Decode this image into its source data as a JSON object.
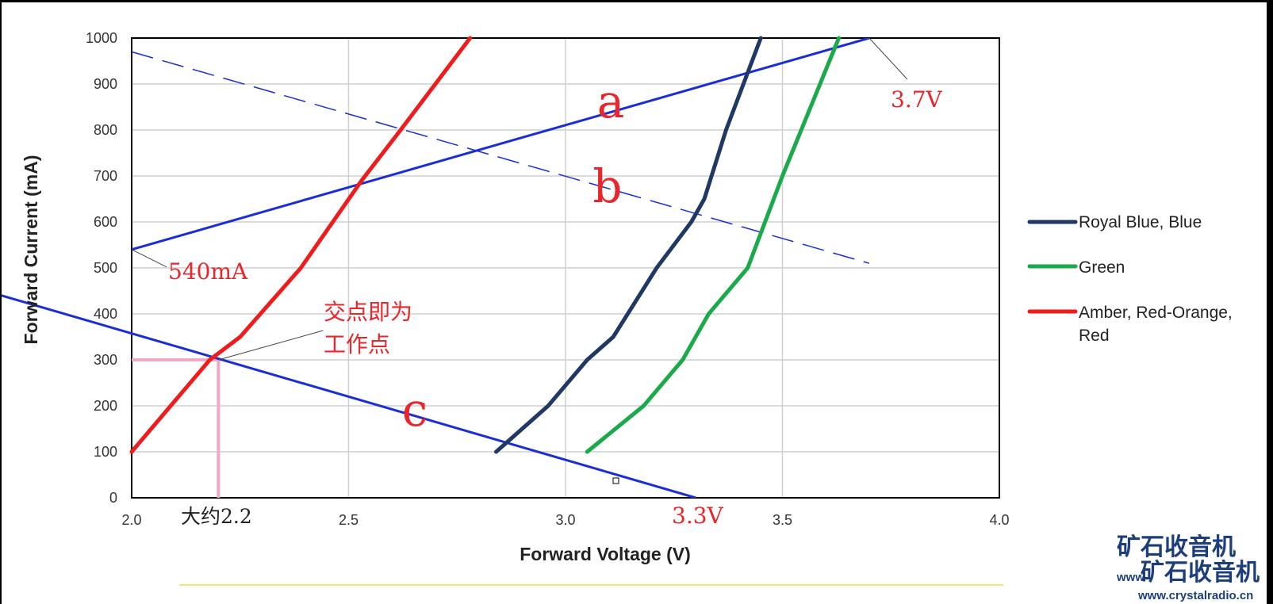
{
  "chart_data": {
    "type": "line",
    "xlabel": "Forward Voltage (V)",
    "ylabel": "Forward Current (mA)",
    "xlim": [
      2.0,
      4.0
    ],
    "ylim": [
      0,
      1000
    ],
    "x_ticks": [
      "2.0",
      "2.5",
      "3.0",
      "3.5",
      "4.0"
    ],
    "y_ticks": [
      "0",
      "100",
      "200",
      "300",
      "400",
      "500",
      "600",
      "700",
      "800",
      "900",
      "1000"
    ],
    "grid": true,
    "legend_position": "right",
    "series": [
      {
        "name": "Royal Blue, Blue",
        "color": "#1f3864",
        "points": [
          [
            2.84,
            100
          ],
          [
            2.96,
            200
          ],
          [
            3.05,
            300
          ],
          [
            3.11,
            350
          ],
          [
            3.21,
            500
          ],
          [
            3.29,
            600
          ],
          [
            3.32,
            650
          ],
          [
            3.37,
            800
          ],
          [
            3.41,
            900
          ],
          [
            3.45,
            1000
          ]
        ]
      },
      {
        "name": "Green",
        "color": "#1aaa4a",
        "points": [
          [
            3.05,
            100
          ],
          [
            3.18,
            200
          ],
          [
            3.27,
            300
          ],
          [
            3.33,
            400
          ],
          [
            3.42,
            500
          ],
          [
            3.5,
            700
          ],
          [
            3.63,
            1000
          ]
        ]
      },
      {
        "name": "Amber, Red-Orange, Red",
        "color": "#ee1c1c",
        "points": [
          [
            2.0,
            100
          ],
          [
            2.09,
            200
          ],
          [
            2.18,
            300
          ],
          [
            2.25,
            350
          ],
          [
            2.39,
            500
          ],
          [
            2.53,
            690
          ],
          [
            2.62,
            800
          ],
          [
            2.78,
            1000
          ]
        ]
      }
    ],
    "load_lines": [
      {
        "label": "a",
        "color": "#1a2ed6",
        "style": "solid",
        "points": [
          [
            2.0,
            540
          ],
          [
            3.7,
            1000
          ]
        ]
      },
      {
        "label": "b",
        "color": "#1a2ed6",
        "style": "dashed",
        "points": [
          [
            2.0,
            970
          ],
          [
            3.7,
            510
          ]
        ]
      },
      {
        "label": "c",
        "color": "#1a2ed6",
        "style": "solid",
        "points": [
          [
            1.7,
            440
          ],
          [
            3.3,
            0
          ]
        ]
      }
    ],
    "operating_point": {
      "x": 2.2,
      "y": 300,
      "color": "#f4a6c6"
    },
    "annotations": {
      "a": "a",
      "b": "b",
      "c": "c",
      "v37": "3.7V",
      "v33": "3.3V",
      "ma540": "540mA",
      "intersect_line1": "交点即为",
      "intersect_line2": "工作点",
      "approx": "大约2.2"
    }
  },
  "watermark": {
    "text": "矿石收音机",
    "url": "www.crystalradio.cn",
    "fragment": "www"
  }
}
